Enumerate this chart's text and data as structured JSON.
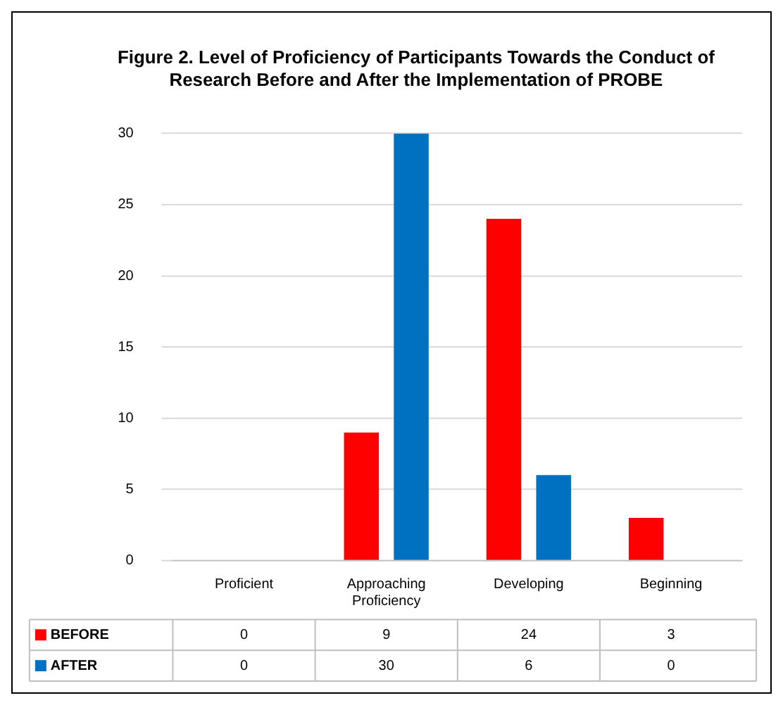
{
  "chart_data": {
    "type": "bar",
    "title": "Figure 2. Level of Proficiency of Participants Towards the Conduct of Research Before and After the Implementation of PROBE",
    "categories": [
      "Proficient",
      "Approaching Proficiency",
      "Developing",
      "Beginning"
    ],
    "series": [
      {
        "name": "BEFORE",
        "color": "#ff0000",
        "values": [
          0,
          9,
          24,
          3
        ]
      },
      {
        "name": "AFTER",
        "color": "#0070c0",
        "values": [
          0,
          30,
          6,
          0
        ]
      }
    ],
    "ylim": [
      0,
      30
    ],
    "yticks": [
      0,
      5,
      10,
      15,
      20,
      25,
      30
    ],
    "grid": "y",
    "legend": "bottom",
    "data_labels": true
  }
}
